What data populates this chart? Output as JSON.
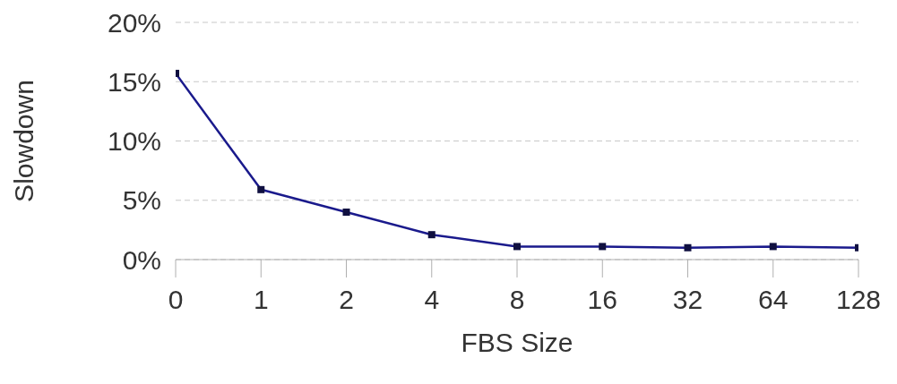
{
  "chart_data": {
    "type": "line",
    "xlabel": "FBS Size",
    "ylabel": "Slowdown",
    "categories": [
      "0",
      "1",
      "2",
      "4",
      "8",
      "16",
      "32",
      "64",
      "128"
    ],
    "series": [
      {
        "color": "#1a1a8c",
        "values": [
          15.7,
          5.9,
          4.0,
          2.1,
          1.1,
          1.1,
          1.0,
          1.1,
          1.0
        ]
      }
    ],
    "ylim": [
      0,
      20
    ],
    "yticks": [
      {
        "value": 0,
        "label": "0%"
      },
      {
        "value": 5,
        "label": "5%"
      },
      {
        "value": 10,
        "label": "10%"
      },
      {
        "value": 15,
        "label": "15%"
      },
      {
        "value": 20,
        "label": "20%"
      }
    ],
    "grid": "y",
    "marker": "square",
    "line_style": "solid"
  }
}
